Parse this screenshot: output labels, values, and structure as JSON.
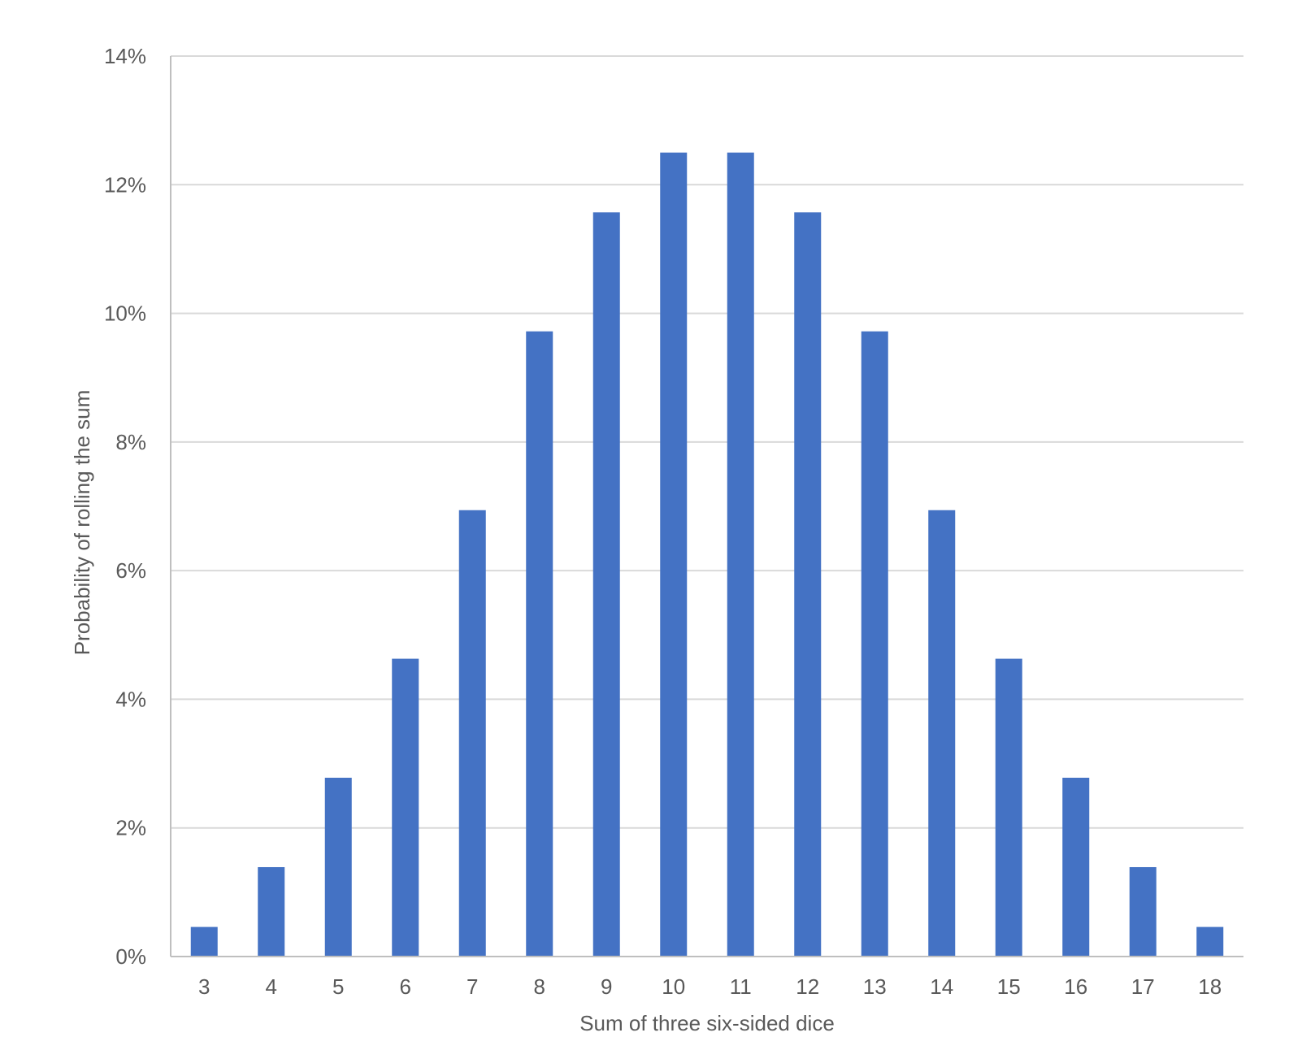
{
  "chart_data": {
    "type": "bar",
    "title": "",
    "xlabel": "Sum of three six-sided dice",
    "ylabel": "Probability of rolling the sum",
    "categories": [
      "3",
      "4",
      "5",
      "6",
      "7",
      "8",
      "9",
      "10",
      "11",
      "12",
      "13",
      "14",
      "15",
      "16",
      "17",
      "18"
    ],
    "values": [
      0.46,
      1.39,
      2.78,
      4.63,
      6.94,
      9.72,
      11.57,
      12.5,
      12.5,
      11.57,
      9.72,
      6.94,
      4.63,
      2.78,
      1.39,
      0.46
    ],
    "value_unit": "%",
    "ylim": [
      0,
      14
    ],
    "y_ticks": [
      0,
      2,
      4,
      6,
      8,
      10,
      12,
      14
    ],
    "y_tick_labels": [
      "0%",
      "2%",
      "4%",
      "6%",
      "8%",
      "10%",
      "12%",
      "14%"
    ],
    "grid": true,
    "legend": "none",
    "colors": {
      "bar": "#4472C4",
      "grid": "#D9D9D9",
      "axis": "#BFBFBF",
      "text": "#595959"
    }
  }
}
